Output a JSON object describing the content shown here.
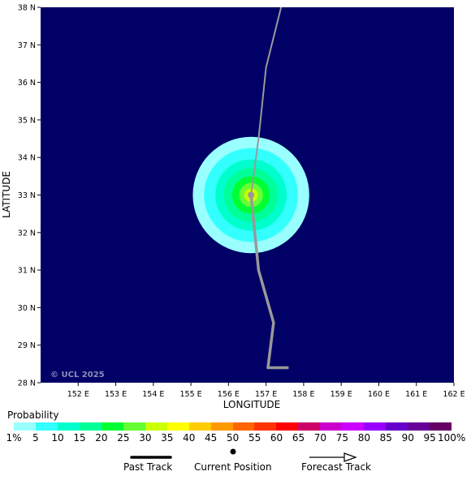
{
  "axes": {
    "x_title": "LONGITUDE",
    "y_title": "LATITUDE",
    "x_ticks": [
      "152 E",
      "153 E",
      "154 E",
      "155 E",
      "156 E",
      "157 E",
      "158 E",
      "159 E",
      "160 E",
      "161 E",
      "162 E"
    ],
    "y_ticks": [
      "38 N",
      "37 N",
      "36 N",
      "35 N",
      "34 N",
      "33 N",
      "32 N",
      "31 N",
      "30 N",
      "29 N",
      "28 N"
    ],
    "lon_range": [
      151,
      162
    ],
    "lat_range": [
      28,
      38
    ]
  },
  "copyright": "© UCL 2025",
  "colors": {
    "background_ocean": "#000066",
    "track_line": "#999999",
    "colorbar": [
      "#99ffff",
      "#33ffff",
      "#00ffcc",
      "#00ff99",
      "#00ff33",
      "#66ff33",
      "#ccff00",
      "#ffff00",
      "#ffcc00",
      "#ff9900",
      "#ff6600",
      "#ff3300",
      "#ff0000",
      "#cc0066",
      "#cc00cc",
      "#cc00ff",
      "#9900ff",
      "#6600cc",
      "#660099",
      "#660066"
    ]
  },
  "probability_legend": {
    "title": "Probability",
    "labels": [
      "1%",
      "5",
      "10",
      "15",
      "20",
      "25",
      "30",
      "35",
      "40",
      "45",
      "50",
      "55",
      "60",
      "65",
      "70",
      "75",
      "80",
      "85",
      "90",
      "95",
      "100%"
    ]
  },
  "track_legend": {
    "past_track": "Past Track",
    "current_position": "Current Position",
    "forecast_track": "Forecast Track"
  },
  "storm": {
    "current_position": {
      "lon": 156.6,
      "lat": 33.0
    },
    "past_track": [
      [
        157.6,
        28.4
      ],
      [
        157.05,
        28.4
      ],
      [
        157.2,
        29.6
      ],
      [
        156.8,
        31.0
      ],
      [
        156.6,
        33.0
      ]
    ],
    "forecast_track": [
      [
        156.6,
        33.0
      ],
      [
        156.8,
        34.5
      ],
      [
        157.0,
        36.4
      ],
      [
        157.4,
        38.0
      ]
    ],
    "probability_rings": [
      {
        "radius_deg": 1.55,
        "prob_level": "1%"
      },
      {
        "radius_deg": 1.25,
        "prob_level": "5"
      },
      {
        "radius_deg": 0.95,
        "prob_level": "10"
      },
      {
        "radius_deg": 0.72,
        "prob_level": "15"
      },
      {
        "radius_deg": 0.5,
        "prob_level": "20"
      },
      {
        "radius_deg": 0.32,
        "prob_level": "25"
      },
      {
        "radius_deg": 0.18,
        "prob_level": "30"
      }
    ]
  }
}
